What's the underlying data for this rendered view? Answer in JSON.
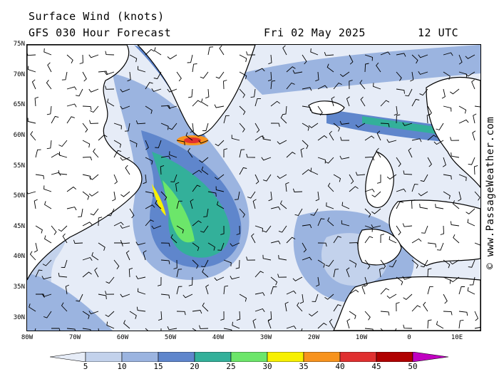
{
  "header": {
    "title": "Surface Wind (knots)",
    "model": "GFS 030 Hour Forecast",
    "date": "Fri 02 May 2025",
    "time": "12 UTC"
  },
  "axes": {
    "lat_labels": [
      "75N",
      "70N",
      "65N",
      "60N",
      "55N",
      "50N",
      "45N",
      "40N",
      "35N",
      "30N"
    ],
    "lon_labels": [
      "80W",
      "70W",
      "60W",
      "50W",
      "40W",
      "30W",
      "20W",
      "10W",
      "0",
      "10E"
    ]
  },
  "credit": "© www.PassageWeather.com",
  "legend": {
    "ticks": [
      "5",
      "10",
      "15",
      "20",
      "25",
      "30",
      "35",
      "40",
      "45",
      "50"
    ],
    "colors": [
      "#e6ecf7",
      "#c3d2ec",
      "#9bb4e0",
      "#5f86cc",
      "#33b09a",
      "#6ce66a",
      "#f7f000",
      "#f7931e",
      "#e03030",
      "#b00000",
      "#c000c0"
    ]
  },
  "colors": {
    "land": "#ffffff",
    "coast": "#000000",
    "ocean_base": "#e9effa"
  }
}
